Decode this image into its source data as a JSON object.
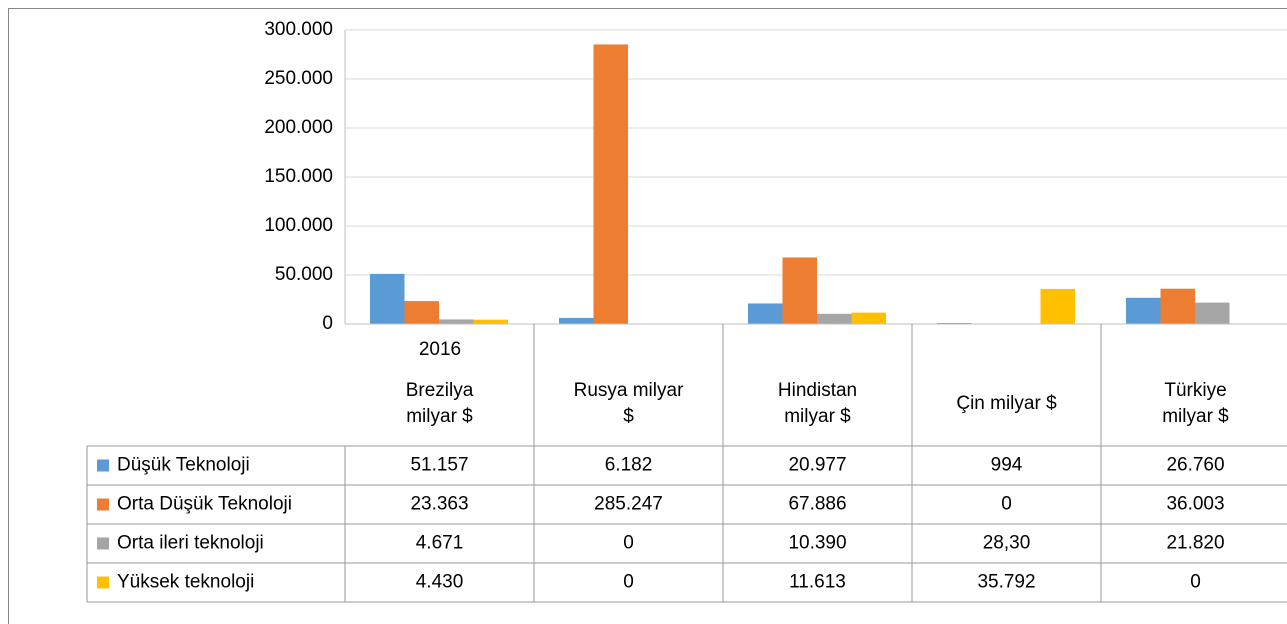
{
  "chart_data": {
    "type": "bar",
    "year_label": "2016",
    "categories": [
      "Brezilya milyar $",
      "Rusya milyar $",
      "Hindistan milyar $",
      "Çin milyar $",
      "Türkiye milyar $"
    ],
    "series": [
      {
        "name": "Düşük Teknoloji",
        "color": "#5b9bd5",
        "values": [
          51157,
          6182,
          20977,
          994,
          26760
        ],
        "value_labels": [
          "51.157",
          "6.182",
          "20.977",
          "994",
          "26.760"
        ]
      },
      {
        "name": "Orta Düşük Teknoloji",
        "color": "#ed7d31",
        "values": [
          23363,
          285247,
          67886,
          0,
          36003
        ],
        "value_labels": [
          "23.363",
          "285.247",
          "67.886",
          "0",
          "36.003"
        ]
      },
      {
        "name": "Orta ileri teknoloji",
        "color": "#a5a5a5",
        "values": [
          4671,
          0,
          10390,
          28.3,
          21820
        ],
        "value_labels": [
          "4.671",
          "0",
          "10.390",
          "28,30",
          "21.820"
        ]
      },
      {
        "name": "Yüksek teknoloji",
        "color": "#ffc000",
        "values": [
          4430,
          0,
          11613,
          35792,
          0
        ],
        "value_labels": [
          "4.430",
          "0",
          "11.613",
          "35.792",
          "0"
        ]
      }
    ],
    "ylim": [
      0,
      300000
    ],
    "yticks": [
      0,
      {
        "value": 50000,
        "label": "50.000"
      },
      {
        "value": 100000,
        "label": "100.000"
      },
      {
        "value": 150000,
        "label": "150.000"
      },
      {
        "value": 200000,
        "label": "200.000"
      },
      {
        "value": 250000,
        "label": "250.000"
      },
      {
        "value": 300000,
        "label": "300.000"
      }
    ],
    "grid": true
  }
}
